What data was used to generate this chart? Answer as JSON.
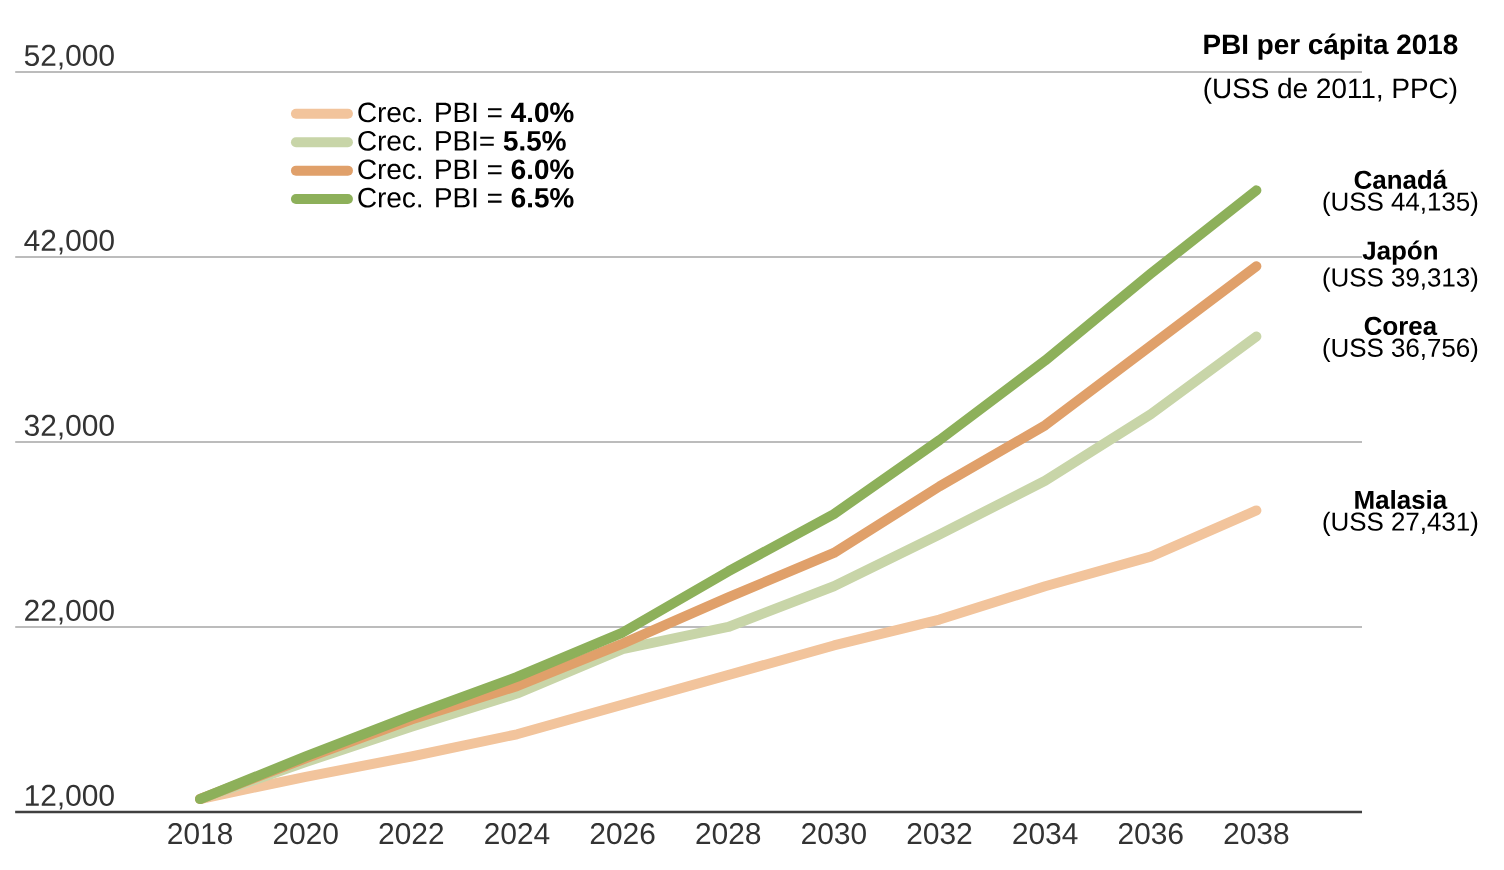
{
  "chart_data": {
    "type": "line",
    "x": [
      2018,
      2020,
      2022,
      2024,
      2026,
      2028,
      2030,
      2032,
      2034,
      2036,
      2038
    ],
    "series": [
      {
        "name": "Crec. PBI = **4.0%**",
        "color": "#f2c49c",
        "values": [
          12700,
          13900,
          15000,
          16200,
          17800,
          19400,
          21000,
          22400,
          24200,
          25800,
          28300
        ]
      },
      {
        "name": "Crec. PBI= **5.5%**",
        "color": "#c8d5a8",
        "values": [
          12700,
          14700,
          16600,
          18400,
          20800,
          22000,
          24200,
          27000,
          29900,
          33500,
          37700
        ]
      },
      {
        "name": "Crec. PBI = **6.0%**",
        "color": "#e0a06a",
        "values": [
          12700,
          14900,
          17000,
          18800,
          21100,
          23600,
          26000,
          29600,
          32900,
          37200,
          41500
        ]
      },
      {
        "name": "Crec. PBI = **6.5%**",
        "color": "#8db05a",
        "values": [
          12700,
          15000,
          17200,
          19300,
          21700,
          25000,
          28100,
          32100,
          36400,
          41100,
          45600
        ]
      }
    ],
    "xlim": [
      2014.5,
      2040
    ],
    "ylim": [
      12000,
      52000
    ],
    "xticks": [
      2018,
      2020,
      2022,
      2024,
      2026,
      2028,
      2030,
      2032,
      2034,
      2036,
      2038
    ],
    "yticks": [
      {
        "value": 12000,
        "label": "12,000"
      },
      {
        "value": 22000,
        "label": "22,000"
      },
      {
        "value": 32000,
        "label": "32,000"
      },
      {
        "value": 42000,
        "label": "42,000"
      },
      {
        "value": 52000,
        "label": "52,000"
      }
    ],
    "grid": "y",
    "legend": "top left",
    "annotations": [
      "PBI per cápita 2018",
      "(USS de 2011, PPC)",
      "Canadá",
      "(USS 44,135)",
      "Japón",
      "(USS 39,313)",
      "Corea",
      "(USS 36,756)",
      "Malasia",
      "(USS 27,431)"
    ]
  }
}
